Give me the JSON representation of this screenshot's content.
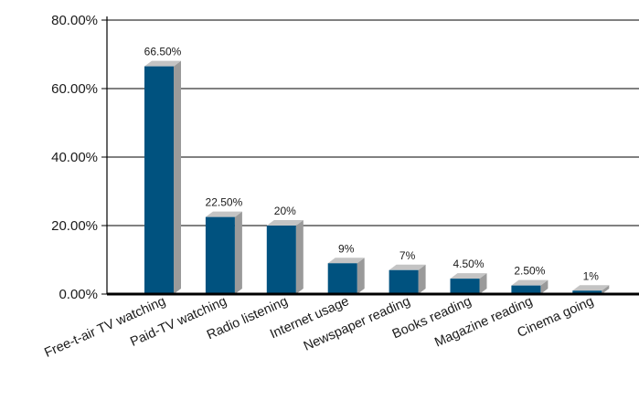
{
  "chart_data": {
    "type": "bar",
    "categories": [
      "Free-t-air TV watching",
      "Paid-TV watching",
      "Radio listening",
      "Internet usage",
      "Newspaper reading",
      "Books reading",
      "Magazine reading",
      "Cinema going"
    ],
    "values": [
      66.5,
      22.5,
      20,
      9,
      7,
      4.5,
      2.5,
      1
    ],
    "data_labels": [
      "66.50%",
      "22.50%",
      "20%",
      "9%",
      "7%",
      "4.50%",
      "2.50%",
      "1%"
    ],
    "y_ticks": [
      "0.00%",
      "20.00%",
      "40.00%",
      "60.00%",
      "80.00%"
    ],
    "ylim": [
      0,
      80
    ],
    "grid": true,
    "legend": "none",
    "title": "",
    "xlabel": "",
    "ylabel": "",
    "colors": {
      "bar_front": "#00527f",
      "bar_side": "#9a9a9a",
      "bar_top": "#c4c4c4",
      "axis": "#000000"
    }
  }
}
